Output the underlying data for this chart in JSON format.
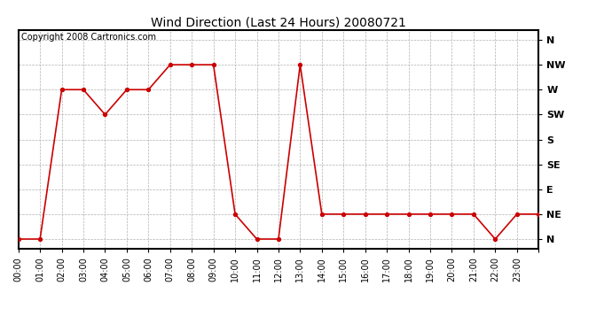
{
  "title": "Wind Direction (Last 24 Hours) 20080721",
  "copyright_text": "Copyright 2008 Cartronics.com",
  "line_color": "#cc0000",
  "bg_color": "#ffffff",
  "grid_color": "#b0b0b0",
  "marker": "o",
  "marker_size": 3,
  "line_width": 1.2,
  "x_labels": [
    "00:00",
    "01:00",
    "02:00",
    "03:00",
    "04:00",
    "05:00",
    "06:00",
    "07:00",
    "08:00",
    "09:00",
    "10:00",
    "11:00",
    "12:00",
    "13:00",
    "14:00",
    "15:00",
    "16:00",
    "17:00",
    "18:00",
    "19:00",
    "20:00",
    "21:00",
    "22:00",
    "23:00"
  ],
  "y_ticks": [
    0,
    45,
    90,
    135,
    180,
    225,
    270,
    315,
    360
  ],
  "y_tick_labels": [
    "N",
    "NE",
    "E",
    "SE",
    "S",
    "SW",
    "W",
    "NW",
    "N"
  ],
  "data_points": [
    [
      0,
      0
    ],
    [
      1,
      0
    ],
    [
      2,
      270
    ],
    [
      3,
      270
    ],
    [
      4,
      225
    ],
    [
      5,
      270
    ],
    [
      6,
      270
    ],
    [
      7,
      315
    ],
    [
      8,
      315
    ],
    [
      9,
      315
    ],
    [
      10,
      45
    ],
    [
      11,
      0
    ],
    [
      12,
      0
    ],
    [
      13,
      315
    ],
    [
      14,
      45
    ],
    [
      15,
      45
    ],
    [
      16,
      45
    ],
    [
      17,
      45
    ],
    [
      18,
      45
    ],
    [
      19,
      45
    ],
    [
      20,
      45
    ],
    [
      21,
      45
    ],
    [
      22,
      0
    ],
    [
      23,
      45
    ],
    [
      24,
      45
    ]
  ],
  "ylim": [
    -18,
    378
  ],
  "xlim": [
    0,
    24
  ],
  "title_fontsize": 10,
  "tick_fontsize": 8,
  "copyright_fontsize": 7
}
